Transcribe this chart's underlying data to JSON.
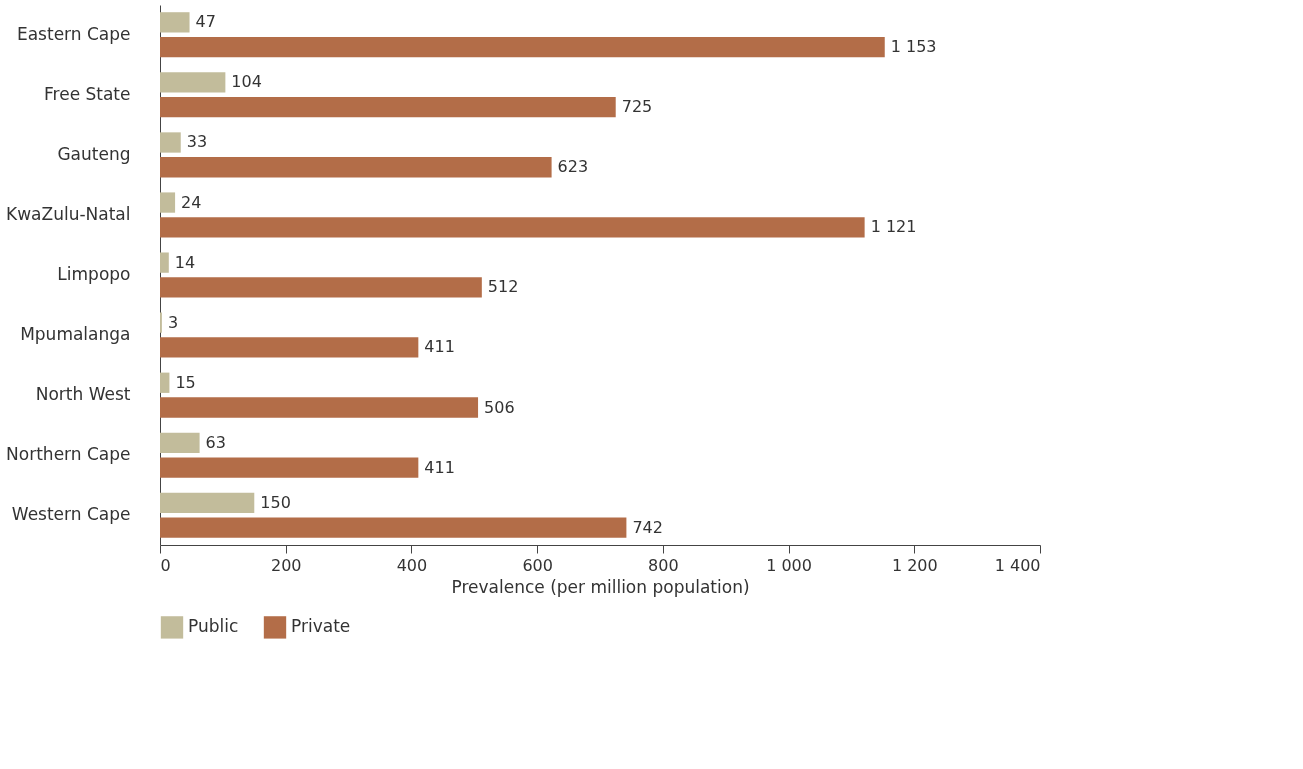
{
  "chart_data": {
    "type": "bar",
    "orientation": "horizontal",
    "xlabel": "Prevalence (per million population)",
    "categories": [
      "Eastern Cape",
      "Free State",
      "Gauteng",
      "KwaZulu-Natal",
      "Limpopo",
      "Mpumalanga",
      "North West",
      "Northern Cape",
      "Western Cape"
    ],
    "series": [
      {
        "name": "Public",
        "color": "#c2bc9b",
        "values": [
          47,
          104,
          33,
          24,
          14,
          3,
          15,
          63,
          150
        ],
        "value_labels": [
          "47",
          "104",
          "33",
          "24",
          "14",
          "3",
          "15",
          "63",
          "150"
        ]
      },
      {
        "name": "Private",
        "color": "#b36d48",
        "values": [
          1153,
          725,
          623,
          1121,
          512,
          411,
          506,
          411,
          742
        ],
        "value_labels": [
          "1 153",
          "725",
          "623",
          "1 121",
          "512",
          "411",
          "506",
          "411",
          "742"
        ]
      }
    ],
    "xlim": [
      0,
      1400
    ],
    "xticks": [
      0,
      200,
      400,
      600,
      800,
      {
        "value": 1000,
        "label": "1 000"
      },
      {
        "value": 1200,
        "label": "1 200"
      },
      {
        "value": 1400,
        "label": "1 400"
      }
    ],
    "legend": "bottom left",
    "grid": false
  }
}
